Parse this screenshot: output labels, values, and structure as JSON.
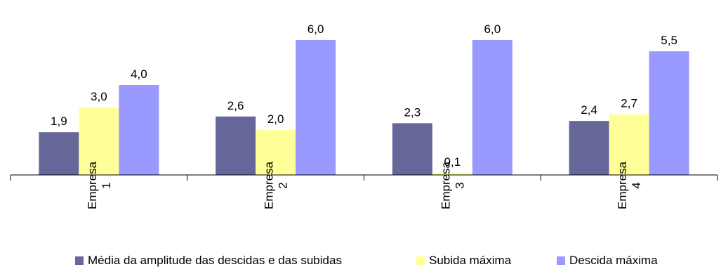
{
  "chart_data": {
    "type": "bar",
    "categories": [
      "Empresa 1",
      "Empresa 2",
      "Empresa 3",
      "Empresa 4"
    ],
    "category_lines": [
      [
        "Empresa",
        "1"
      ],
      [
        "Empresa",
        "2"
      ],
      [
        "Empresa",
        "3"
      ],
      [
        "Empresa",
        "4"
      ]
    ],
    "series": [
      {
        "name": "Média da amplitude das descidas e das subidas",
        "values": [
          1.9,
          2.6,
          2.3,
          2.4
        ],
        "labels": [
          "1,9",
          "2,6",
          "2,3",
          "2,4"
        ],
        "color": "#666699"
      },
      {
        "name": "Subida máxima",
        "values": [
          3.0,
          2.0,
          0.1,
          2.7
        ],
        "labels": [
          "3,0",
          "2,0",
          "0,1",
          "2,7"
        ],
        "color": "#FFFF99"
      },
      {
        "name": "Descida máxima",
        "values": [
          4.0,
          6.0,
          6.0,
          5.5
        ],
        "labels": [
          "4,0",
          "6,0",
          "6,0",
          "5,5"
        ],
        "color": "#9999FF"
      }
    ],
    "ylim": [
      0,
      6
    ],
    "y_axis_visible": false,
    "grid": false,
    "legend_position": "bottom",
    "category_label_orientation": "rotated-vertical"
  }
}
